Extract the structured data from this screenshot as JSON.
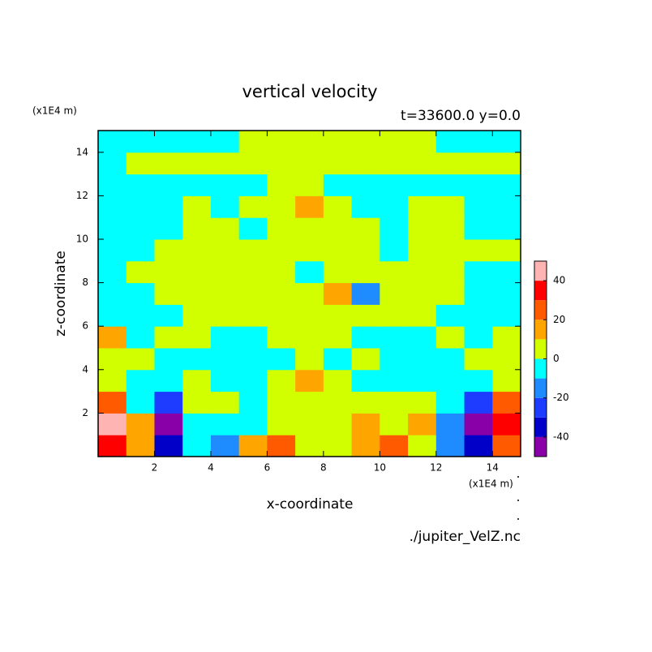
{
  "chart_data": {
    "type": "contour",
    "title": "vertical velocity",
    "subtitle": "t=33600.0 y=0.0",
    "x_label": "x-coordinate",
    "y_label": "z-coordinate",
    "x_unit": "(x1E4 m)",
    "y_unit": "(x1E4 m)",
    "source": "./jupiter_VelZ.nc",
    "xlim": [
      0,
      15
    ],
    "ylim": [
      0,
      15
    ],
    "xticks": [
      2,
      4,
      6,
      8,
      10,
      12,
      14
    ],
    "yticks": [
      2,
      4,
      6,
      8,
      10,
      12,
      14
    ],
    "x": [
      0.5,
      1.5,
      2.5,
      3.5,
      4.5,
      5.5,
      6.5,
      7.5,
      8.5,
      9.5,
      10.5,
      11.5,
      12.5,
      13.5,
      14.5
    ],
    "y": [
      0.5,
      1.5,
      2.5,
      3.5,
      4.5,
      5.5,
      6.5,
      7.5,
      8.5,
      9.5,
      10.5,
      11.5,
      12.5,
      13.5,
      14.5
    ],
    "z": [
      [
        35,
        15,
        -35,
        -5,
        -15,
        15,
        25,
        5,
        5,
        15,
        25,
        5,
        -15,
        -35,
        25
      ],
      [
        45,
        15,
        -45,
        -5,
        -5,
        -5,
        5,
        5,
        5,
        15,
        5,
        15,
        -15,
        -45,
        35
      ],
      [
        25,
        -5,
        -25,
        5,
        5,
        -5,
        5,
        5,
        5,
        5,
        5,
        5,
        -5,
        -25,
        25
      ],
      [
        5,
        -5,
        -5,
        5,
        -5,
        -5,
        5,
        15,
        5,
        -5,
        -5,
        -5,
        -5,
        -5,
        5
      ],
      [
        5,
        5,
        -5,
        -5,
        -5,
        -5,
        -5,
        5,
        -5,
        5,
        -5,
        -5,
        -5,
        5,
        5
      ],
      [
        15,
        -5,
        5,
        5,
        -5,
        -5,
        5,
        5,
        5,
        -5,
        -5,
        -5,
        5,
        -5,
        5
      ],
      [
        -5,
        -5,
        -5,
        5,
        5,
        5,
        5,
        5,
        5,
        5,
        5,
        5,
        -5,
        -5,
        -5
      ],
      [
        -5,
        -5,
        5,
        5,
        5,
        5,
        5,
        5,
        15,
        -15,
        5,
        5,
        5,
        -5,
        -5
      ],
      [
        -5,
        5,
        5,
        5,
        5,
        5,
        5,
        -5,
        5,
        5,
        5,
        5,
        5,
        -5,
        -5
      ],
      [
        -5,
        -5,
        5,
        5,
        5,
        5,
        5,
        5,
        5,
        5,
        -5,
        5,
        5,
        5,
        5
      ],
      [
        -5,
        -5,
        -5,
        5,
        5,
        -5,
        5,
        5,
        5,
        5,
        -5,
        5,
        5,
        -5,
        -5
      ],
      [
        -5,
        -5,
        -5,
        5,
        -5,
        5,
        5,
        15,
        5,
        -5,
        -5,
        5,
        5,
        -5,
        -5
      ],
      [
        -5,
        -5,
        -5,
        -5,
        -5,
        -5,
        5,
        5,
        -5,
        -5,
        -5,
        -5,
        -5,
        -5,
        -5
      ],
      [
        -5,
        5,
        5,
        5,
        5,
        5,
        5,
        5,
        5,
        5,
        5,
        5,
        5,
        5,
        5
      ],
      [
        -5,
        -5,
        -5,
        -5,
        -5,
        5,
        5,
        5,
        5,
        5,
        5,
        5,
        -5,
        -5,
        -5
      ]
    ],
    "levels": [
      -50,
      -40,
      -30,
      -20,
      -10,
      0,
      10,
      20,
      30,
      40,
      50
    ],
    "colors": [
      "#8a00a8",
      "#0000c8",
      "#1e3cff",
      "#1e8cff",
      "#00ffff",
      "#d2ff00",
      "#ffa500",
      "#ff5a00",
      "#ff0000",
      "#ffb4b4"
    ],
    "colorbar_ticks": [
      -40,
      -20,
      0,
      20,
      40
    ]
  }
}
